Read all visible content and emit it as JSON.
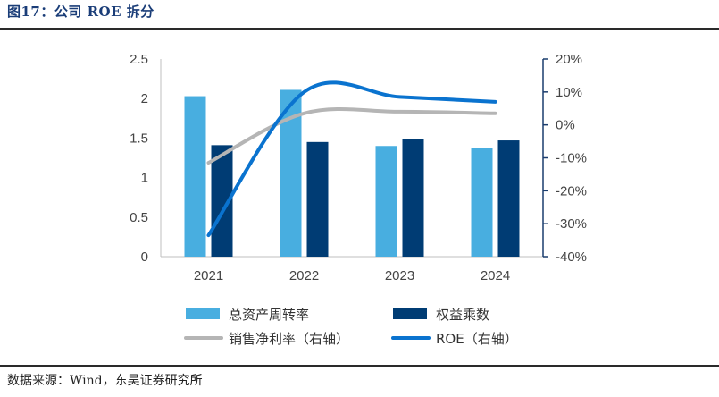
{
  "header": {
    "title": "图17：公司 ROE 拆分"
  },
  "footer": {
    "source": "数据来源：Wind，东吴证券研究所"
  },
  "colors": {
    "light_blue": "#48aee0",
    "dark_blue": "#003c74",
    "gray": "#b5b5b5",
    "roe_blue": "#0a73cf",
    "axis": "#1a3d6e"
  },
  "chart_data": {
    "type": "bar",
    "title": "公司 ROE 拆分",
    "categories": [
      "2021",
      "2022",
      "2023",
      "2024"
    ],
    "left_axis": {
      "ylim": [
        0,
        2.5
      ],
      "ticks": [
        "0",
        "0.5",
        "1",
        "1.5",
        "2",
        "2.5"
      ]
    },
    "right_axis": {
      "ylim": [
        -40,
        20
      ],
      "ticks": [
        "-40%",
        "-30%",
        "-20%",
        "-10%",
        "0%",
        "10%",
        "20%"
      ]
    },
    "series": [
      {
        "name": "总资产周转率",
        "type": "bar",
        "axis": "left",
        "values": [
          2.03,
          2.11,
          1.4,
          1.38
        ]
      },
      {
        "name": "权益乘数",
        "type": "bar",
        "axis": "left",
        "values": [
          1.41,
          1.45,
          1.49,
          1.47
        ]
      },
      {
        "name": "销售净利率（右轴）",
        "type": "line",
        "axis": "right",
        "values": [
          -11.5,
          3.5,
          4.0,
          3.5
        ]
      },
      {
        "name": "ROE（右轴）",
        "type": "line",
        "axis": "right",
        "values": [
          -33.5,
          10.0,
          8.5,
          7.0
        ]
      }
    ],
    "legend": [
      "总资产周转率",
      "权益乘数",
      "销售净利率（右轴）",
      "ROE（右轴）"
    ]
  }
}
